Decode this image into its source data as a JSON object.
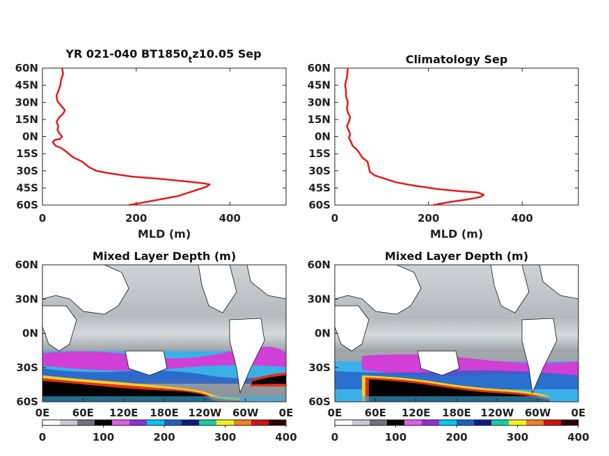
{
  "chart_data": [
    {
      "type": "line",
      "title": "YR 021-040 BT1850",
      "title_sub": "t",
      "title_suffix": "z10.05 Sep",
      "xlabel": "MLD (m)",
      "ylabel": "",
      "xlim": [
        0,
        520
      ],
      "ylim": [
        -60,
        60
      ],
      "xticks": [
        "0",
        "200",
        "400"
      ],
      "yticks": [
        "60N",
        "45N",
        "30N",
        "15N",
        "0N",
        "15S",
        "30S",
        "45S",
        "60S"
      ],
      "series": [
        {
          "color": "#e41a1c",
          "points": [
            [
              185,
              -60
            ],
            [
              225,
              -57
            ],
            [
              265,
              -54
            ],
            [
              290,
              -52
            ],
            [
              305,
              -50
            ],
            [
              320,
              -48
            ],
            [
              335,
              -46
            ],
            [
              350,
              -44
            ],
            [
              357,
              -42
            ],
            [
              345,
              -41
            ],
            [
              300,
              -39
            ],
            [
              250,
              -37
            ],
            [
              190,
              -35
            ],
            [
              140,
              -32
            ],
            [
              115,
              -30
            ],
            [
              100,
              -27
            ],
            [
              85,
              -22
            ],
            [
              65,
              -18
            ],
            [
              50,
              -13
            ],
            [
              40,
              -10
            ],
            [
              28,
              -8
            ],
            [
              22,
              -5
            ],
            [
              26,
              -3
            ],
            [
              38,
              -2
            ],
            [
              42,
              0
            ],
            [
              36,
              3
            ],
            [
              32,
              6
            ],
            [
              34,
              9
            ],
            [
              30,
              13
            ],
            [
              36,
              17
            ],
            [
              44,
              20
            ],
            [
              48,
              23
            ],
            [
              40,
              27
            ],
            [
              32,
              31
            ],
            [
              30,
              36
            ],
            [
              34,
              40
            ],
            [
              38,
              45
            ],
            [
              40,
              50
            ],
            [
              44,
              55
            ],
            [
              42,
              60
            ]
          ]
        }
      ]
    },
    {
      "type": "line",
      "title": "Climatology Sep",
      "xlabel": "MLD (m)",
      "ylabel": "",
      "xlim": [
        0,
        520
      ],
      "ylim": [
        -60,
        60
      ],
      "xticks": [
        "0",
        "200",
        "400"
      ],
      "yticks": [
        "60N",
        "45N",
        "30N",
        "15N",
        "0N",
        "15S",
        "30S",
        "45S",
        "60S"
      ],
      "series": [
        {
          "color": "#e41a1c",
          "points": [
            [
              210,
              -60
            ],
            [
              250,
              -57
            ],
            [
              285,
              -55
            ],
            [
              310,
              -53
            ],
            [
              318,
              -51
            ],
            [
              305,
              -49
            ],
            [
              270,
              -48
            ],
            [
              220,
              -46
            ],
            [
              170,
              -43
            ],
            [
              130,
              -40
            ],
            [
              100,
              -36
            ],
            [
              85,
              -34
            ],
            [
              75,
              -31
            ],
            [
              72,
              -26
            ],
            [
              70,
              -22
            ],
            [
              58,
              -18
            ],
            [
              52,
              -14
            ],
            [
              46,
              -11
            ],
            [
              38,
              -8
            ],
            [
              34,
              -4
            ],
            [
              30,
              -1
            ],
            [
              33,
              2
            ],
            [
              30,
              5
            ],
            [
              26,
              9
            ],
            [
              30,
              13
            ],
            [
              33,
              17
            ],
            [
              28,
              21
            ],
            [
              26,
              25
            ],
            [
              28,
              30
            ],
            [
              24,
              35
            ],
            [
              24,
              40
            ],
            [
              22,
              45
            ],
            [
              26,
              52
            ],
            [
              28,
              60
            ]
          ]
        }
      ]
    },
    {
      "type": "heatmap",
      "title": "Mixed Layer Depth (m)",
      "xticks": [
        "0E",
        "60E",
        "120E",
        "180E",
        "120W",
        "60W",
        "0E"
      ],
      "yticks": [
        "60N",
        "30N",
        "0N",
        "30S",
        "60S"
      ],
      "colorbar": {
        "ticks": [
          "0",
          "100",
          "200",
          "300",
          "400"
        ],
        "range": [
          0,
          400
        ]
      }
    },
    {
      "type": "heatmap",
      "title": "Mixed Layer Depth (m)",
      "xticks": [
        "0E",
        "60E",
        "120E",
        "180E",
        "120W",
        "60W",
        "0E"
      ],
      "yticks": [
        "60N",
        "30N",
        "0N",
        "30S",
        "60S"
      ],
      "colorbar": {
        "ticks": [
          "0",
          "100",
          "200",
          "300",
          "400"
        ],
        "range": [
          0,
          400
        ]
      }
    }
  ]
}
